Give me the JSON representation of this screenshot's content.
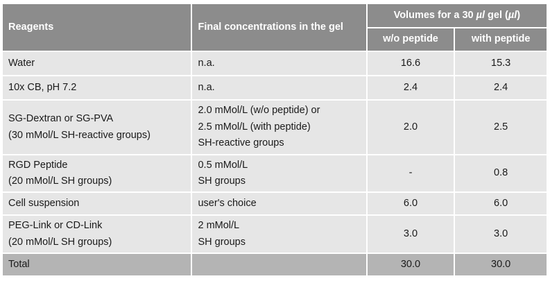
{
  "table": {
    "headers": {
      "reagents": "Reagents",
      "final_concentrations": "Final concentrations in the gel",
      "volumes_prefix": "Volumes for a 30 ",
      "volumes_unit1": "µl",
      "volumes_mid": " gel (",
      "volumes_unit2": "µl",
      "volumes_suffix": ")",
      "without_peptide": "w/o peptide",
      "with_peptide": "with peptide"
    },
    "rows": [
      {
        "reagent": [
          "Water"
        ],
        "concentration": [
          "n.a."
        ],
        "without": "16.6",
        "with": "15.3"
      },
      {
        "reagent": [
          "10x CB, pH 7.2"
        ],
        "concentration": [
          "n.a."
        ],
        "without": "2.4",
        "with": "2.4"
      },
      {
        "reagent": [
          "SG-Dextran or SG-PVA",
          "(30 mMol/L SH-reactive groups)"
        ],
        "concentration": [
          "2.0 mMol/L (w/o peptide) or",
          "2.5 mMol/L (with peptide)",
          "SH-reactive groups"
        ],
        "without": "2.0",
        "with": "2.5"
      },
      {
        "reagent": [
          "RGD Peptide",
          "(20 mMol/L SH groups)"
        ],
        "concentration": [
          "0.5 mMol/L",
          "SH groups"
        ],
        "without": "-",
        "with": "0.8"
      },
      {
        "reagent": [
          "Cell suspension"
        ],
        "concentration": [
          "user's choice"
        ],
        "without": "6.0",
        "with": "6.0"
      },
      {
        "reagent": [
          "PEG-Link or CD-Link",
          "(20 mMol/L SH groups)"
        ],
        "concentration": [
          "2 mMol/L",
          "SH groups"
        ],
        "without": "3.0",
        "with": "3.0"
      }
    ],
    "total": {
      "label": "Total",
      "without": "30.0",
      "with": "30.0"
    }
  }
}
